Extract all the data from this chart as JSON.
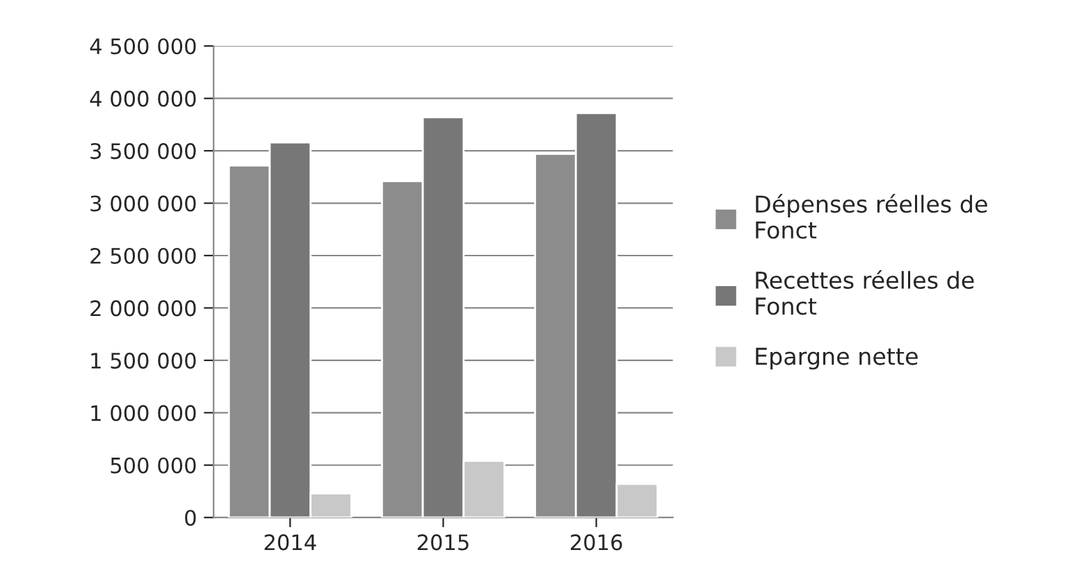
{
  "chart_data": {
    "type": "bar",
    "categories": [
      "2014",
      "2015",
      "2016"
    ],
    "series": [
      {
        "name": "Dépenses réelles de\nFonct",
        "color": "#8c8c8c",
        "values": [
          3360000,
          3210000,
          3470000
        ]
      },
      {
        "name": "Recettes réelles de\nFonct",
        "color": "#777777",
        "values": [
          3580000,
          3820000,
          3860000
        ]
      },
      {
        "name": "Epargne nette",
        "color": "#c8c8c8",
        "values": [
          230000,
          540000,
          320000
        ]
      }
    ],
    "ylim": [
      0,
      4500000
    ],
    "yticks": [
      {
        "value": 0,
        "label": "0"
      },
      {
        "value": 500000,
        "label": "500 000"
      },
      {
        "value": 1000000,
        "label": "1 000 000"
      },
      {
        "value": 1500000,
        "label": "1 500 000"
      },
      {
        "value": 2000000,
        "label": "2 000 000"
      },
      {
        "value": 2500000,
        "label": "2 500 000"
      },
      {
        "value": 3000000,
        "label": "3 000 000"
      },
      {
        "value": 3500000,
        "label": "3 500 000"
      },
      {
        "value": 4000000,
        "label": "4 000 000"
      },
      {
        "value": 4500000,
        "label": "4 500 000"
      }
    ],
    "grid": "y",
    "legend": "right"
  }
}
